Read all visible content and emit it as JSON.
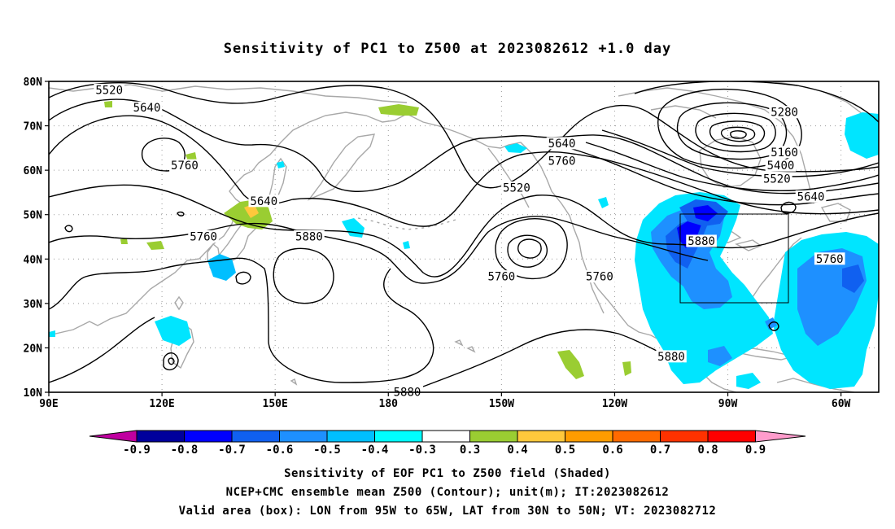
{
  "title": "Sensitivity of PC1 to Z500 at 2023082612 +1.0 day",
  "lat_labels": [
    "80N",
    "70N",
    "60N",
    "50N",
    "40N",
    "30N",
    "20N",
    "10N"
  ],
  "lon_labels": [
    "90E",
    "120E",
    "150E",
    "180",
    "150W",
    "120W",
    "90W",
    "60W"
  ],
  "contour_labels": [
    {
      "text": "5520",
      "lon": 106,
      "lat": 78
    },
    {
      "text": "5640",
      "lon": 116,
      "lat": 74
    },
    {
      "text": "5760",
      "lon": 126,
      "lat": 61
    },
    {
      "text": "5640",
      "lon": 147,
      "lat": 53
    },
    {
      "text": "5760",
      "lon": 131,
      "lat": 45
    },
    {
      "text": "5880",
      "lon": 159,
      "lat": 45
    },
    {
      "text": "5520",
      "lon": 214,
      "lat": 56
    },
    {
      "text": "5640",
      "lon": 226,
      "lat": 66
    },
    {
      "text": "5760",
      "lon": 226,
      "lat": 62
    },
    {
      "text": "5760",
      "lon": 210,
      "lat": 36
    },
    {
      "text": "5760",
      "lon": 236,
      "lat": 36
    },
    {
      "text": "5880",
      "lon": 263,
      "lat": 44
    },
    {
      "text": "5880",
      "lon": 185,
      "lat": 10
    },
    {
      "text": "5880",
      "lon": 255,
      "lat": 18
    },
    {
      "text": "5280",
      "lon": 285,
      "lat": 73
    },
    {
      "text": "5160",
      "lon": 285,
      "lat": 64
    },
    {
      "text": "5400",
      "lon": 284,
      "lat": 61
    },
    {
      "text": "5520",
      "lon": 283,
      "lat": 58
    },
    {
      "text": "5640",
      "lon": 292,
      "lat": 54
    },
    {
      "text": "5760",
      "lon": 297,
      "lat": 40
    }
  ],
  "colorbar": {
    "labels": [
      "-0.9",
      "-0.8",
      "-0.7",
      "-0.6",
      "-0.5",
      "-0.4",
      "-0.3",
      "0.3",
      "0.4",
      "0.5",
      "0.6",
      "0.7",
      "0.8",
      "0.9"
    ],
    "colors": [
      "#c000a0",
      "#00009c",
      "#0000ff",
      "#1060f0",
      "#1e90ff",
      "#00bfff",
      "#00ffff",
      "#ffffff",
      "#9acd32",
      "#ffc83c",
      "#ff9c00",
      "#ff6a00",
      "#ff3200",
      "#ff0000",
      "#ff9ccc"
    ]
  },
  "captions": [
    "Sensitivity of EOF PC1 to Z500 field (Shaded)",
    "NCEP+CMC ensemble mean Z500 (Contour); unit(m); IT:2023082612",
    "Valid area (box): LON from 95W to 65W, LAT from 30N to 50N; VT: 2023082712"
  ]
}
